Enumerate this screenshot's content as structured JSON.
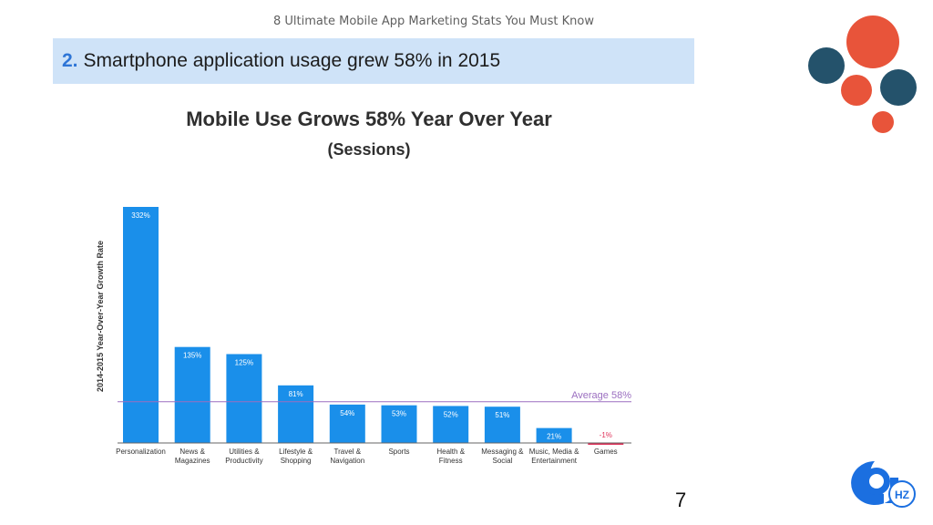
{
  "header": {
    "deck_title": "8 Ultimate Mobile App Marketing Stats You Must Know",
    "heading_number": "2.",
    "heading_text": "Smartphone application usage grew 58% in 2015"
  },
  "page_number": "7",
  "logo": {
    "text": "HZ",
    "icon": "9hz-logo-icon"
  },
  "decor": {
    "colors": [
      "#e8543a",
      "#24526b"
    ]
  },
  "chart_data": {
    "type": "bar",
    "title": "Mobile Use Grows 58% Year Over Year",
    "subtitle": "(Sessions)",
    "ylabel": "2014-2015 Year-Over-Year Growth Rate",
    "categories": [
      [
        "Personalization"
      ],
      [
        "News &",
        "Magazines"
      ],
      [
        "Utilities &",
        "Productivity"
      ],
      [
        "Lifestyle &",
        "Shopping"
      ],
      [
        "Travel &",
        "Navigation"
      ],
      [
        "Sports"
      ],
      [
        "Health &",
        "Fitness"
      ],
      [
        "Messaging &",
        "Social"
      ],
      [
        "Music, Media &",
        "Entertainment"
      ],
      [
        "Games"
      ]
    ],
    "values": [
      332,
      135,
      125,
      81,
      54,
      53,
      52,
      51,
      21,
      -1
    ],
    "value_labels": [
      "332%",
      "135%",
      "125%",
      "81%",
      "54%",
      "53%",
      "52%",
      "51%",
      "21%",
      "-1%"
    ],
    "average": {
      "value": 58,
      "label": "Average 58%"
    },
    "ylim": [
      -1,
      332
    ],
    "colors": {
      "bar": "#1a8fea",
      "negative": "#e0335a",
      "average_line": "#9b6fc0",
      "axis": "#666666"
    }
  }
}
